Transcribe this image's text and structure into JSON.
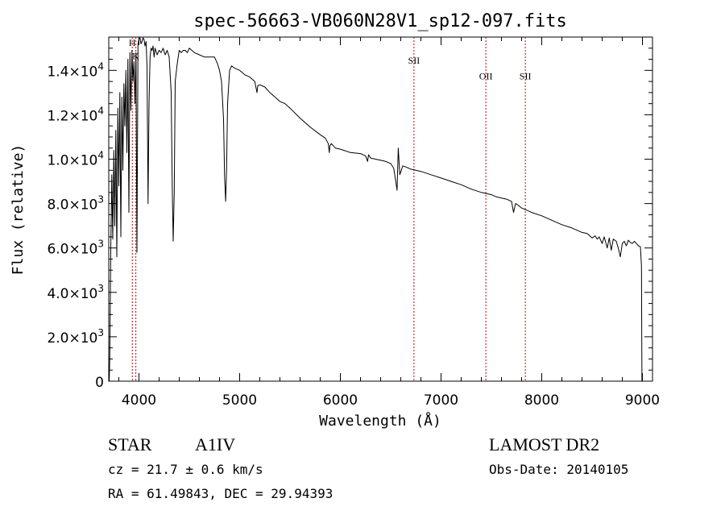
{
  "chart_data": {
    "type": "line",
    "title": "spec-56663-VB060N28V1_sp12-097.fits",
    "xlabel": "Wavelength (Å)",
    "ylabel": "Flux (relative)",
    "xlim": [
      3700,
      9100
    ],
    "ylim": [
      0,
      15500
    ],
    "x_ticks": [
      4000,
      5000,
      6000,
      7000,
      8000,
      9000
    ],
    "x_tick_labels": [
      "4000",
      "5000",
      "6000",
      "7000",
      "8000",
      "9000"
    ],
    "y_ticks": [
      {
        "value": 0,
        "mantissa": "0",
        "exp": ""
      },
      {
        "value": 2000,
        "mantissa": "2.0×10",
        "exp": "3"
      },
      {
        "value": 4000,
        "mantissa": "4.0×10",
        "exp": "3"
      },
      {
        "value": 6000,
        "mantissa": "6.0×10",
        "exp": "3"
      },
      {
        "value": 8000,
        "mantissa": "8.0×10",
        "exp": "3"
      },
      {
        "value": 10000,
        "mantissa": "1.0×10",
        "exp": "4"
      },
      {
        "value": 12000,
        "mantissa": "1.2×10",
        "exp": "4"
      },
      {
        "value": 14000,
        "mantissa": "1.4×10",
        "exp": "4"
      }
    ],
    "line_markers": [
      {
        "label": "H",
        "x": 3934,
        "label_y": 15100
      },
      {
        "label": "K",
        "x": 3969,
        "label_y": 14500
      },
      {
        "label": "SII",
        "x": 6731,
        "label_y": 14300
      },
      {
        "label": "OII",
        "x": 7445,
        "label_y": 13600
      },
      {
        "label": "SII",
        "x": 7837,
        "label_y": 13600
      }
    ],
    "marker_color": "#cc0000",
    "line_color": "#000000",
    "series": [
      {
        "x": [
          3705,
          3710,
          3720,
          3730,
          3740,
          3750,
          3760,
          3770,
          3780,
          3790,
          3800,
          3810,
          3820,
          3830,
          3840,
          3850,
          3860,
          3870,
          3880,
          3890,
          3900,
          3910,
          3920,
          3930,
          3940,
          3950,
          3960,
          3970,
          3980,
          3990,
          4000,
          4010,
          4020,
          4030,
          4040,
          4050,
          4060,
          4070,
          4080,
          4090,
          4100,
          4110,
          4120,
          4130,
          4140,
          4150,
          4160,
          4180,
          4200,
          4220,
          4240,
          4260,
          4280,
          4300,
          4320,
          4330,
          4340,
          4350,
          4360,
          4380,
          4400,
          4420,
          4440,
          4460,
          4480,
          4500,
          4550,
          4600,
          4650,
          4700,
          4750,
          4780,
          4800,
          4820,
          4840,
          4850,
          4861,
          4870,
          4880,
          4900,
          4920,
          4950,
          5000,
          5050,
          5100,
          5150,
          5172,
          5180,
          5200,
          5250,
          5300,
          5350,
          5400,
          5450,
          5500,
          5600,
          5700,
          5800,
          5850,
          5880,
          5890,
          5896,
          5910,
          5950,
          6000,
          6100,
          6200,
          6250,
          6270,
          6280,
          6300,
          6350,
          6400,
          6450,
          6500,
          6530,
          6550,
          6563,
          6575,
          6590,
          6620,
          6650,
          6700,
          6800,
          6900,
          7000,
          7100,
          7200,
          7300,
          7400,
          7500,
          7550,
          7600,
          7650,
          7700,
          7720,
          7740,
          7760,
          7800,
          7900,
          8000,
          8100,
          8200,
          8300,
          8400,
          8450,
          8500,
          8530,
          8550,
          8570,
          8600,
          8620,
          8650,
          8670,
          8690,
          8710,
          8740,
          8760,
          8780,
          8800,
          8820,
          8840,
          8860,
          8880,
          8900,
          8920,
          8940,
          8960,
          8980,
          8990,
          8995
        ],
        "y": [
          0,
          1200,
          5900,
          9300,
          6400,
          10400,
          7000,
          11300,
          5600,
          12300,
          8800,
          13000,
          6500,
          12800,
          9500,
          13400,
          11500,
          14000,
          10300,
          14500,
          7600,
          14800,
          12200,
          14900,
          13500,
          14400,
          12500,
          14800,
          5800,
          15200,
          15400,
          15500,
          15200,
          15300,
          15600,
          15400,
          15100,
          15300,
          14200,
          8000,
          12500,
          14600,
          15000,
          14900,
          15100,
          14600,
          15000,
          14700,
          14900,
          14800,
          15000,
          14700,
          14900,
          14600,
          13000,
          8800,
          6300,
          8500,
          13500,
          14300,
          14900,
          14800,
          14900,
          14900,
          14800,
          15000,
          14800,
          14700,
          14600,
          14600,
          14600,
          14300,
          14000,
          13500,
          11800,
          9200,
          8100,
          9600,
          12500,
          14000,
          14200,
          14100,
          14000,
          13800,
          13700,
          13500,
          13000,
          13300,
          13350,
          13250,
          13000,
          12800,
          12600,
          12500,
          12300,
          11850,
          11450,
          11100,
          10950,
          10700,
          10300,
          10600,
          10700,
          10500,
          10450,
          10300,
          10250,
          10150,
          9900,
          10200,
          10050,
          10000,
          9950,
          9900,
          9800,
          9600,
          9000,
          8600,
          10500,
          9300,
          9700,
          9650,
          9550,
          9450,
          9300,
          9150,
          9000,
          8850,
          8650,
          8500,
          8400,
          8300,
          8250,
          8200,
          8100,
          7600,
          8000,
          7950,
          7800,
          7600,
          7450,
          7250,
          7050,
          6900,
          6700,
          6650,
          6450,
          6550,
          6400,
          6500,
          6200,
          6500,
          6000,
          6450,
          5900,
          6400,
          6300,
          6000,
          5600,
          6200,
          6300,
          6100,
          6350,
          6250,
          6200,
          6300,
          6200,
          6100,
          6050,
          5200,
          0
        ]
      }
    ]
  },
  "info": {
    "object_type": "STAR",
    "subclass": "A1IV",
    "survey": "LAMOST DR2",
    "cz": "cz = 21.7 ± 0.6 km/s",
    "obs_date": "Obs-Date: 20140105",
    "coords": "RA =  61.49843, DEC =  29.94393"
  }
}
